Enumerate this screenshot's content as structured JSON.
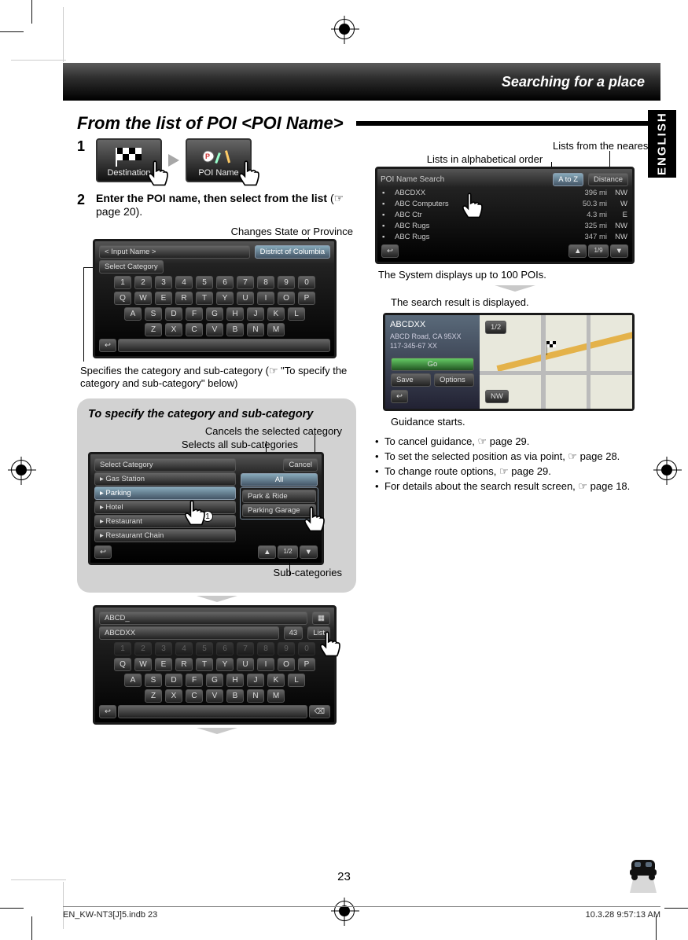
{
  "header": {
    "title": "Searching for a place"
  },
  "lang_tab": "ENGLISH",
  "section_title": "From the list of POI <POI Name>",
  "step1": {
    "number": "1",
    "destination_label": "Destination",
    "poi_label": "POI Name"
  },
  "step2": {
    "number": "2",
    "text": "Enter the POI name, then select from the list",
    "ref": "(☞ page 20)."
  },
  "callouts": {
    "changes_state": "Changes State or Province",
    "category_spec": "Specifies the category and sub-category (☞ \"To specify the category and sub-category\" below)",
    "alpha_order": "Lists in alphabetical order",
    "nearest": "Lists from the nearest",
    "displays_100": "The System displays up to 100 POIs.",
    "search_result": "The search result is displayed.",
    "guidance_starts": "Guidance starts.",
    "cancels_category": "Cancels the selected category",
    "selects_all": "Selects all sub-categories",
    "sub_categories": "Sub-categories"
  },
  "keyboard_screen": {
    "input_label": "< Input Name >",
    "select_category": "Select Category",
    "state": "District of Columbia",
    "row_nums": [
      "1",
      "2",
      "3",
      "4",
      "5",
      "6",
      "7",
      "8",
      "9",
      "0"
    ],
    "row_q": [
      "Q",
      "W",
      "E",
      "R",
      "T",
      "Y",
      "U",
      "I",
      "O",
      "P"
    ],
    "row_a": [
      "A",
      "S",
      "D",
      "F",
      "G",
      "H",
      "J",
      "K",
      "L"
    ],
    "row_z": [
      "Z",
      "X",
      "C",
      "V",
      "B",
      "N",
      "M"
    ]
  },
  "info_box": {
    "title": "To specify the category and sub-category",
    "select_category_header": "Select Category",
    "left_list": [
      "Gas Station",
      "Parking",
      "Hotel",
      "Restaurant",
      "Restaurant Chain"
    ],
    "cancel": "Cancel",
    "all": "All",
    "right_list": [
      "Park & Ride",
      "Parking Garage"
    ]
  },
  "kb2": {
    "top_text": "ABCD_",
    "result_text": "ABCDXX",
    "count": "43",
    "list_btn": "List"
  },
  "poi_list_screen": {
    "header": "POI Name Search",
    "btn_atoz": "A to Z",
    "btn_distance": "Distance",
    "rows": [
      {
        "name": "ABCDXX",
        "dist": "396 mi",
        "dir": "NW"
      },
      {
        "name": "ABC Computers",
        "dist": "50.3 mi",
        "dir": "W"
      },
      {
        "name": "ABC Ctr",
        "dist": "4.3 mi",
        "dir": "E"
      },
      {
        "name": "ABC Rugs",
        "dist": "325 mi",
        "dir": "NW"
      },
      {
        "name": "ABC Rugs",
        "dist": "347 mi",
        "dir": "NW"
      }
    ],
    "footer_page": "1/9"
  },
  "detail_screen": {
    "name": "ABCDXX",
    "addr": "ABCD Road, CA 95XX",
    "phone": "117-345-67 XX",
    "go": "Go",
    "save": "Save",
    "options": "Options",
    "zoom": "1/2",
    "compass": "NW"
  },
  "bullets": [
    "To cancel guidance, ☞ page 29.",
    "To set the selected position as via point, ☞ page 28.",
    "To change route options, ☞ page 29.",
    "For details about the search result screen, ☞ page 18."
  ],
  "footer": {
    "page_num": "23",
    "file": "EN_KW-NT3[J]5.indb   23",
    "timestamp": "10.3.28   9:57:13 AM"
  },
  "colors": {
    "header_bg_top": "#5c5c5c",
    "header_bg_bottom": "#000000",
    "info_box_bg": "#d2d2d2",
    "page_bg": "#ffffff"
  }
}
